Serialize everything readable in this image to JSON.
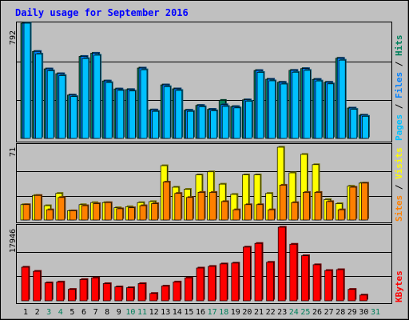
{
  "chart_data": [
    {
      "type": "bar",
      "title": "Daily usage for September 2016",
      "categories": [
        "1",
        "2",
        "3",
        "4",
        "5",
        "6",
        "7",
        "8",
        "9",
        "10",
        "11",
        "12",
        "13",
        "14",
        "15",
        "16",
        "17",
        "18",
        "19",
        "20",
        "21",
        "22",
        "23",
        "24",
        "25",
        "26",
        "27",
        "28",
        "29",
        "30",
        "31"
      ],
      "weekend_days": [
        "3",
        "4",
        "10",
        "11",
        "17",
        "18",
        "24",
        "25",
        "31"
      ],
      "max_label": "792",
      "right_labels": [
        "Pages",
        "Files",
        "Hits"
      ],
      "ylim": [
        0,
        792
      ],
      "series": [
        {
          "name": "Hits",
          "color": "#00805c",
          "values": [
            792,
            598,
            478,
            445,
            298,
            564,
            586,
            395,
            340,
            336,
            484,
            196,
            368,
            341,
            194,
            227,
            200,
            262,
            219,
            265,
            467,
            407,
            386,
            468,
            480,
            406,
            386,
            551,
            209,
            160,
            0
          ]
        },
        {
          "name": "Files",
          "color": "#0080ff",
          "values": [
            792,
            598,
            478,
            445,
            298,
            564,
            586,
            395,
            340,
            336,
            484,
            196,
            368,
            341,
            194,
            227,
            200,
            232,
            219,
            265,
            467,
            407,
            386,
            468,
            480,
            406,
            386,
            551,
            209,
            160,
            0
          ]
        },
        {
          "name": "Pages",
          "color": "#00c0ff",
          "values": [
            792,
            580,
            465,
            432,
            288,
            549,
            572,
            384,
            330,
            326,
            472,
            186,
            356,
            330,
            186,
            218,
            190,
            220,
            210,
            256,
            454,
            396,
            374,
            455,
            468,
            395,
            375,
            538,
            200,
            152,
            0
          ]
        }
      ]
    },
    {
      "type": "bar",
      "max_label": "71",
      "right_labels": [
        "Sites",
        "Visits"
      ],
      "ylim": [
        0,
        71
      ],
      "series": [
        {
          "name": "Visits",
          "color": "#ffff00",
          "values": [
            15,
            24,
            14,
            26,
            9,
            15,
            17,
            17,
            12,
            13,
            17,
            18,
            53,
            32,
            30,
            44,
            47,
            35,
            25,
            44,
            44,
            26,
            71,
            46,
            64,
            54,
            20,
            16,
            33,
            36,
            0
          ]
        },
        {
          "name": "Sites",
          "color": "#ff8000",
          "values": [
            15,
            24,
            10,
            22,
            9,
            14,
            16,
            17,
            11,
            12,
            14,
            16,
            37,
            26,
            22,
            27,
            27,
            18,
            10,
            15,
            15,
            10,
            34,
            17,
            27,
            27,
            18,
            10,
            32,
            36,
            0
          ]
        }
      ]
    },
    {
      "type": "bar",
      "max_label": "17946",
      "right_labels": [
        "KBytes"
      ],
      "ylim": [
        0,
        17946
      ],
      "series": [
        {
          "name": "KBytes",
          "color": "#ff0000",
          "values": [
            8200,
            7200,
            4400,
            4600,
            2800,
            5200,
            5600,
            4200,
            3400,
            3200,
            4200,
            1800,
            3600,
            4600,
            5600,
            8000,
            8400,
            9000,
            9200,
            13100,
            14000,
            9400,
            17946,
            13800,
            11000,
            8800,
            7400,
            7600,
            2800,
            1400,
            0
          ]
        }
      ]
    }
  ]
}
